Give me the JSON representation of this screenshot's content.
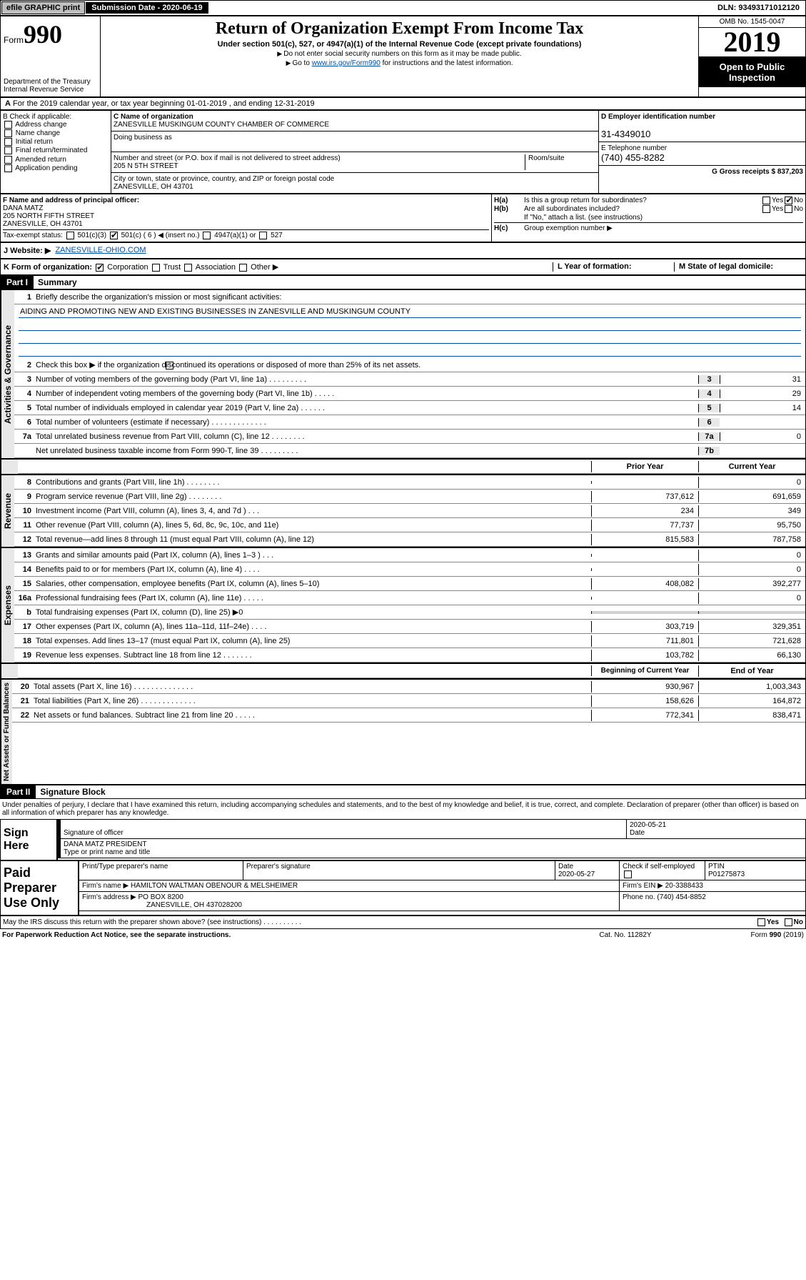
{
  "topbar": {
    "efile_btn": "efile GRAPHIC print",
    "submission_label": "Submission Date - 2020-06-19",
    "dln": "DLN: 93493171012120"
  },
  "header": {
    "form_prefix": "Form",
    "form_number": "990",
    "dept1": "Department of the Treasury",
    "dept2": "Internal Revenue Service",
    "title": "Return of Organization Exempt From Income Tax",
    "sub1": "Under section 501(c), 527, or 4947(a)(1) of the Internal Revenue Code (except private foundations)",
    "sub2": "Do not enter social security numbers on this form as it may be made public.",
    "sub3_pre": "Go to ",
    "sub3_link": "www.irs.gov/Form990",
    "sub3_post": " for instructions and the latest information.",
    "omb": "OMB No. 1545-0047",
    "year": "2019",
    "inspection": "Open to Public Inspection"
  },
  "row_a": "For the 2019 calendar year, or tax year beginning 01-01-2019    , and ending 12-31-2019",
  "col_b": {
    "hdr": "B Check if applicable:",
    "items": [
      "Address change",
      "Name change",
      "Initial return",
      "Final return/terminated",
      "Amended return",
      "Application pending"
    ]
  },
  "col_c": {
    "name_lbl": "C Name of organization",
    "name": "ZANESVILLE MUSKINGUM COUNTY CHAMBER OF COMMERCE",
    "dba_lbl": "Doing business as",
    "dba": "",
    "addr_lbl": "Number and street (or P.O. box if mail is not delivered to street address)",
    "room_lbl": "Room/suite",
    "addr": "205 N 5TH STREET",
    "city_lbl": "City or town, state or province, country, and ZIP or foreign postal code",
    "city": "ZANESVILLE, OH  43701"
  },
  "col_d": {
    "ein_lbl": "D Employer identification number",
    "ein": "31-4349010",
    "tel_lbl": "E Telephone number",
    "tel": "(740) 455-8282",
    "gross_lbl": "G Gross receipts $ 837,203"
  },
  "row_f": {
    "lbl": "F  Name and address of principal officer:",
    "name": "DANA MATZ",
    "addr1": "205 NORTH FIFTH STREET",
    "addr2": "ZANESVILLE, OH  43701"
  },
  "row_h": {
    "ha_lbl": "H(a)",
    "ha_txt": "Is this a group return for subordinates?",
    "hb_lbl": "H(b)",
    "hb_txt": "Are all subordinates included?",
    "hb_note": "If \"No,\" attach a list. (see instructions)",
    "hc_lbl": "H(c)",
    "hc_txt": "Group exemption number ▶",
    "yes": "Yes",
    "no": "No"
  },
  "tax_status": {
    "lbl": "Tax-exempt status:",
    "opt1": "501(c)(3)",
    "opt2": "501(c) ( 6 ) ◀ (insert no.)",
    "opt3": "4947(a)(1) or",
    "opt4": "527"
  },
  "row_j": {
    "lbl": "J Website: ▶",
    "val": "ZANESVILLE-OHIO.COM"
  },
  "row_k": {
    "lbl": "K Form of organization:",
    "opts": [
      "Corporation",
      "Trust",
      "Association",
      "Other ▶"
    ],
    "l_lbl": "L Year of formation:",
    "m_lbl": "M State of legal domicile:"
  },
  "part1": {
    "hdr": "Part I",
    "title": "Summary",
    "mission_lbl": "Briefly describe the organization's mission or most significant activities:",
    "mission": "AIDING AND PROMOTING NEW AND EXISTING BUSINESSES IN ZANESVILLE AND MUSKINGUM COUNTY",
    "line2": "Check this box ▶       if the organization discontinued its operations or disposed of more than 25% of its net assets.",
    "lines_gov": [
      {
        "n": "3",
        "t": "Number of voting members of the governing body (Part VI, line 1a)  .    .    .    .    .    .    .    .    .",
        "b": "3",
        "v": "31"
      },
      {
        "n": "4",
        "t": "Number of independent voting members of the governing body (Part VI, line 1b)  .    .    .    .    .",
        "b": "4",
        "v": "29"
      },
      {
        "n": "5",
        "t": "Total number of individuals employed in calendar year 2019 (Part V, line 2a)  .    .    .    .    .    .",
        "b": "5",
        "v": "14"
      },
      {
        "n": "6",
        "t": "Total number of volunteers (estimate if necessary)  .    .    .    .    .    .    .    .    .    .    .    .    .",
        "b": "6",
        "v": ""
      },
      {
        "n": "7a",
        "t": "Total unrelated business revenue from Part VIII, column (C), line 12  .    .    .    .    .    .    .    .",
        "b": "7a",
        "v": "0"
      },
      {
        "n": "",
        "t": "Net unrelated business taxable income from Form 990-T, line 39  .    .    .    .    .    .    .    .    .",
        "b": "7b",
        "v": ""
      }
    ],
    "hdr_prior": "Prior Year",
    "hdr_current": "Current Year",
    "lines_rev": [
      {
        "n": "8",
        "t": "Contributions and grants (Part VIII, line 1h)  .    .    .    .    .    .    .    .",
        "p": "",
        "c": "0"
      },
      {
        "n": "9",
        "t": "Program service revenue (Part VIII, line 2g)  .    .    .    .    .    .    .    .",
        "p": "737,612",
        "c": "691,659"
      },
      {
        "n": "10",
        "t": "Investment income (Part VIII, column (A), lines 3, 4, and 7d )  .    .    .",
        "p": "234",
        "c": "349"
      },
      {
        "n": "11",
        "t": "Other revenue (Part VIII, column (A), lines 5, 6d, 8c, 9c, 10c, and 11e)",
        "p": "77,737",
        "c": "95,750"
      },
      {
        "n": "12",
        "t": "Total revenue—add lines 8 through 11 (must equal Part VIII, column (A), line 12)",
        "p": "815,583",
        "c": "787,758"
      }
    ],
    "lines_exp": [
      {
        "n": "13",
        "t": "Grants and similar amounts paid (Part IX, column (A), lines 1–3 )  .    .    .",
        "p": "",
        "c": "0"
      },
      {
        "n": "14",
        "t": "Benefits paid to or for members (Part IX, column (A), line 4)  .    .    .    .",
        "p": "",
        "c": "0"
      },
      {
        "n": "15",
        "t": "Salaries, other compensation, employee benefits (Part IX, column (A), lines 5–10)",
        "p": "408,082",
        "c": "392,277"
      },
      {
        "n": "16a",
        "t": "Professional fundraising fees (Part IX, column (A), line 11e)  .    .    .    .    .",
        "p": "",
        "c": "0"
      },
      {
        "n": "b",
        "t": "Total fundraising expenses (Part IX, column (D), line 25) ▶0",
        "p": "shade",
        "c": "shade"
      },
      {
        "n": "17",
        "t": "Other expenses (Part IX, column (A), lines 11a–11d, 11f–24e)  .    .    .    .",
        "p": "303,719",
        "c": "329,351"
      },
      {
        "n": "18",
        "t": "Total expenses. Add lines 13–17 (must equal Part IX, column (A), line 25)",
        "p": "711,801",
        "c": "721,628"
      },
      {
        "n": "19",
        "t": "Revenue less expenses. Subtract line 18 from line 12  .    .    .    .    .    .    .",
        "p": "103,782",
        "c": "66,130"
      }
    ],
    "hdr_beg": "Beginning of Current Year",
    "hdr_end": "End of Year",
    "lines_net": [
      {
        "n": "20",
        "t": "Total assets (Part X, line 16)  .    .    .    .    .    .    .    .    .    .    .    .    .    .",
        "p": "930,967",
        "c": "1,003,343"
      },
      {
        "n": "21",
        "t": "Total liabilities (Part X, line 26)  .    .    .    .    .    .    .    .    .    .    .    .    .",
        "p": "158,626",
        "c": "164,872"
      },
      {
        "n": "22",
        "t": "Net assets or fund balances. Subtract line 21 from line 20  .    .    .    .    .",
        "p": "772,341",
        "c": "838,471"
      }
    ],
    "vlabels": [
      "Activities & Governance",
      "Revenue",
      "Expenses",
      "Net Assets or Fund Balances"
    ]
  },
  "part2": {
    "hdr": "Part II",
    "title": "Signature Block",
    "decl": "Under penalties of perjury, I declare that I have examined this return, including accompanying schedules and statements, and to the best of my knowledge and belief, it is true, correct, and complete. Declaration of preparer (other than officer) is based on all information of which preparer has any knowledge.",
    "sign_here": "Sign Here",
    "sig_officer_lbl": "Signature of officer",
    "sig_date": "2020-05-21",
    "date_lbl": "Date",
    "officer_name": "DANA MATZ  PRESIDENT",
    "officer_name_lbl": "Type or print name and title",
    "paid": "Paid Preparer Use Only",
    "prep_name_lbl": "Print/Type preparer's name",
    "prep_sig_lbl": "Preparer's signature",
    "prep_date_lbl": "Date",
    "prep_date": "2020-05-27",
    "check_lbl": "Check         if self-employed",
    "ptin_lbl": "PTIN",
    "ptin": "P01275873",
    "firm_name_lbl": "Firm's name     ▶",
    "firm_name": "HAMILTON WALTMAN OBENOUR & MELSHEIMER",
    "firm_ein_lbl": "Firm's EIN ▶",
    "firm_ein": "20-3388433",
    "firm_addr_lbl": "Firm's address ▶",
    "firm_addr1": "PO BOX 8200",
    "firm_addr2": "ZANESVILLE, OH  437028200",
    "phone_lbl": "Phone no.",
    "phone": "(740) 454-8852"
  },
  "irs_discuss": "May the IRS discuss this return with the preparer shown above? (see instructions)   .    .    .    .    .    .    .    .    .    .",
  "footer": {
    "pra": "For Paperwork Reduction Act Notice, see the separate instructions.",
    "cat": "Cat. No. 11282Y",
    "form": "Form 990 (2019)"
  }
}
